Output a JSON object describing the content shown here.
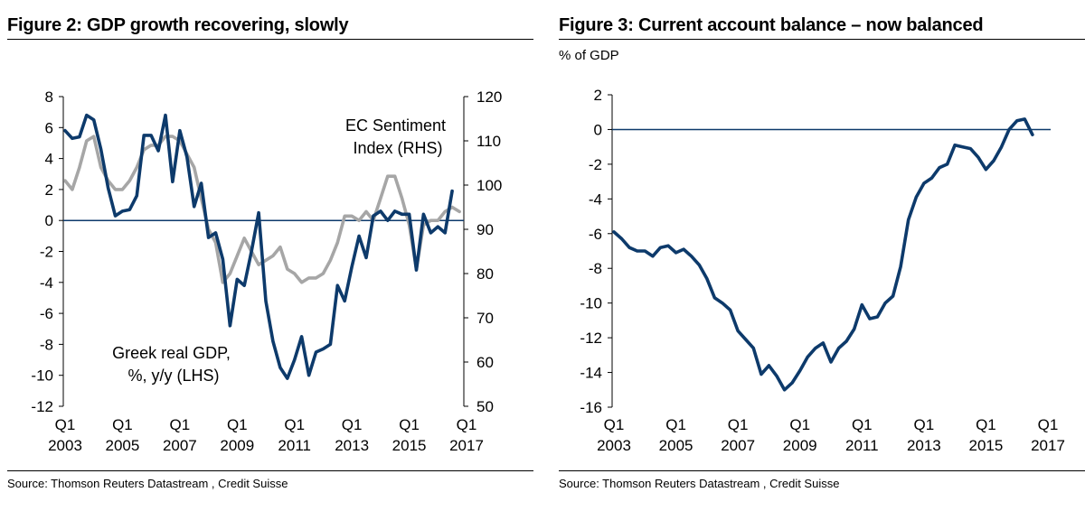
{
  "chart_data": [
    {
      "type": "line",
      "title": "Figure 2: GDP growth recovering, slowly",
      "source": "Source: Thomson Reuters Datastream , Credit Suisse",
      "x_range": [
        2003.0,
        2017.0
      ],
      "x_ticks": [
        {
          "q": "Q1",
          "year": "2003",
          "x": 2003
        },
        {
          "q": "Q1",
          "year": "2005",
          "x": 2005
        },
        {
          "q": "Q1",
          "year": "2007",
          "x": 2007
        },
        {
          "q": "Q1",
          "year": "2009",
          "x": 2009
        },
        {
          "q": "Q1",
          "year": "2011",
          "x": 2011
        },
        {
          "q": "Q1",
          "year": "2013",
          "x": 2013
        },
        {
          "q": "Q1",
          "year": "2015",
          "x": 2015
        },
        {
          "q": "Q1",
          "year": "2017",
          "x": 2017
        }
      ],
      "y_left": {
        "min": -12,
        "max": 8,
        "ticks": [
          "8",
          "6",
          "4",
          "2",
          "0",
          "-2",
          "-4",
          "-6",
          "-8",
          "-10",
          "-12"
        ]
      },
      "y_right": {
        "min": 50,
        "max": 120,
        "ticks": [
          "120",
          "110",
          "100",
          "90",
          "80",
          "70",
          "60",
          "50"
        ]
      },
      "zero_line": true,
      "series": [
        {
          "name": "Greek real GDP, %, y/y (LHS)",
          "axis": "left",
          "color": "#0d3a6b",
          "label_lines": [
            "Greek real GDP,",
            "%, y/y (LHS)"
          ],
          "x": [
            2003.0,
            2003.25,
            2003.5,
            2003.75,
            2004.0,
            2004.25,
            2004.5,
            2004.75,
            2005.0,
            2005.25,
            2005.5,
            2005.75,
            2006.0,
            2006.25,
            2006.5,
            2006.75,
            2007.0,
            2007.25,
            2007.5,
            2007.75,
            2008.0,
            2008.25,
            2008.5,
            2008.75,
            2009.0,
            2009.25,
            2009.5,
            2009.75,
            2010.0,
            2010.25,
            2010.5,
            2010.75,
            2011.0,
            2011.25,
            2011.5,
            2011.75,
            2012.0,
            2012.25,
            2012.5,
            2012.75,
            2013.0,
            2013.25,
            2013.5,
            2013.75,
            2014.0,
            2014.25,
            2014.5,
            2014.75,
            2015.0,
            2015.25,
            2015.5,
            2015.75,
            2016.0,
            2016.25,
            2016.5
          ],
          "values": [
            5.8,
            5.3,
            5.4,
            6.8,
            6.5,
            4.6,
            2.1,
            0.3,
            0.6,
            0.7,
            1.6,
            5.5,
            5.5,
            4.5,
            6.8,
            2.5,
            5.8,
            4.1,
            0.9,
            2.4,
            -1.1,
            -0.8,
            -2.5,
            -6.8,
            -3.8,
            -4.2,
            -2.0,
            0.5,
            -5.2,
            -7.8,
            -9.5,
            -10.2,
            -9.0,
            -7.5,
            -10.0,
            -8.5,
            -8.3,
            -8.0,
            -4.2,
            -5.2,
            -3.0,
            -1.0,
            -2.4,
            0.3,
            0.6,
            0.0,
            0.6,
            0.4,
            0.4,
            -3.2,
            0.4,
            -0.8,
            -0.4,
            -0.8,
            1.9
          ]
        },
        {
          "name": "EC Sentiment Index (RHS)",
          "axis": "right",
          "color": "#a6a6a6",
          "label_lines": [
            "EC Sentiment",
            "Index (RHS)"
          ],
          "x": [
            2003.0,
            2003.25,
            2003.5,
            2003.75,
            2004.0,
            2004.25,
            2004.5,
            2004.75,
            2005.0,
            2005.25,
            2005.5,
            2005.75,
            2006.0,
            2006.25,
            2006.5,
            2006.75,
            2007.0,
            2007.25,
            2007.5,
            2007.75,
            2008.0,
            2008.25,
            2008.5,
            2008.75,
            2009.0,
            2009.25,
            2009.5,
            2009.75,
            2010.0,
            2010.25,
            2010.5,
            2010.75,
            2011.0,
            2011.25,
            2011.5,
            2011.75,
            2012.0,
            2012.25,
            2012.5,
            2012.75,
            2013.0,
            2013.25,
            2013.5,
            2013.75,
            2014.0,
            2014.25,
            2014.5,
            2014.75,
            2015.0,
            2015.25,
            2015.5,
            2015.75,
            2016.0,
            2016.25,
            2016.5,
            2016.75
          ],
          "values": [
            101,
            99,
            104,
            110,
            111,
            104,
            101,
            99,
            99,
            101,
            104,
            108,
            109,
            109,
            111,
            111,
            110,
            107,
            104,
            97,
            90,
            87,
            78,
            80,
            84,
            88,
            85,
            82,
            83,
            84,
            86,
            81,
            80,
            78,
            79,
            79,
            80,
            83,
            87,
            93,
            93,
            92,
            94,
            92,
            97,
            102,
            102,
            97,
            91,
            81,
            91,
            92,
            92,
            94,
            95,
            94
          ]
        }
      ]
    },
    {
      "type": "line",
      "title": "Figure 3: Current account balance – now balanced",
      "subtitle": "% of GDP",
      "source": "Source: Thomson Reuters Datastream , Credit Suisse",
      "x_range": [
        2003.0,
        2017.0
      ],
      "x_ticks": [
        {
          "q": "Q1",
          "year": "2003",
          "x": 2003
        },
        {
          "q": "Q1",
          "year": "2005",
          "x": 2005
        },
        {
          "q": "Q1",
          "year": "2007",
          "x": 2007
        },
        {
          "q": "Q1",
          "year": "2009",
          "x": 2009
        },
        {
          "q": "Q1",
          "year": "2011",
          "x": 2011
        },
        {
          "q": "Q1",
          "year": "2013",
          "x": 2013
        },
        {
          "q": "Q1",
          "year": "2015",
          "x": 2015
        },
        {
          "q": "Q1",
          "year": "2017",
          "x": 2017
        }
      ],
      "y_left": {
        "min": -16,
        "max": 2,
        "ticks": [
          "2",
          "0",
          "-2",
          "-4",
          "-6",
          "-8",
          "-10",
          "-12",
          "-14",
          "-16"
        ]
      },
      "zero_line": true,
      "series": [
        {
          "name": "Current account balance",
          "axis": "left",
          "color": "#0d3a6b",
          "x": [
            2003.0,
            2003.25,
            2003.5,
            2003.75,
            2004.0,
            2004.25,
            2004.5,
            2004.75,
            2005.0,
            2005.25,
            2005.5,
            2005.75,
            2006.0,
            2006.25,
            2006.5,
            2006.75,
            2007.0,
            2007.25,
            2007.5,
            2007.75,
            2008.0,
            2008.25,
            2008.5,
            2008.75,
            2009.0,
            2009.25,
            2009.5,
            2009.75,
            2010.0,
            2010.25,
            2010.5,
            2010.75,
            2011.0,
            2011.25,
            2011.5,
            2011.75,
            2012.0,
            2012.25,
            2012.5,
            2012.75,
            2013.0,
            2013.25,
            2013.5,
            2013.75,
            2014.0,
            2014.25,
            2014.5,
            2014.75,
            2015.0,
            2015.25,
            2015.5,
            2015.75,
            2016.0,
            2016.25,
            2016.5
          ],
          "values": [
            -5.9,
            -6.3,
            -6.8,
            -7.0,
            -7.0,
            -7.3,
            -6.8,
            -6.7,
            -7.1,
            -6.9,
            -7.3,
            -7.8,
            -8.6,
            -9.7,
            -10.0,
            -10.4,
            -11.6,
            -12.1,
            -12.6,
            -14.1,
            -13.6,
            -14.2,
            -15.0,
            -14.6,
            -13.9,
            -13.1,
            -12.6,
            -12.3,
            -13.4,
            -12.6,
            -12.2,
            -11.5,
            -10.1,
            -10.9,
            -10.8,
            -10.0,
            -9.6,
            -7.9,
            -5.2,
            -3.9,
            -3.1,
            -2.8,
            -2.2,
            -2.0,
            -0.9,
            -1.0,
            -1.1,
            -1.6,
            -2.3,
            -1.8,
            -1.0,
            0.0,
            0.5,
            0.6,
            -0.3
          ]
        }
      ]
    }
  ]
}
